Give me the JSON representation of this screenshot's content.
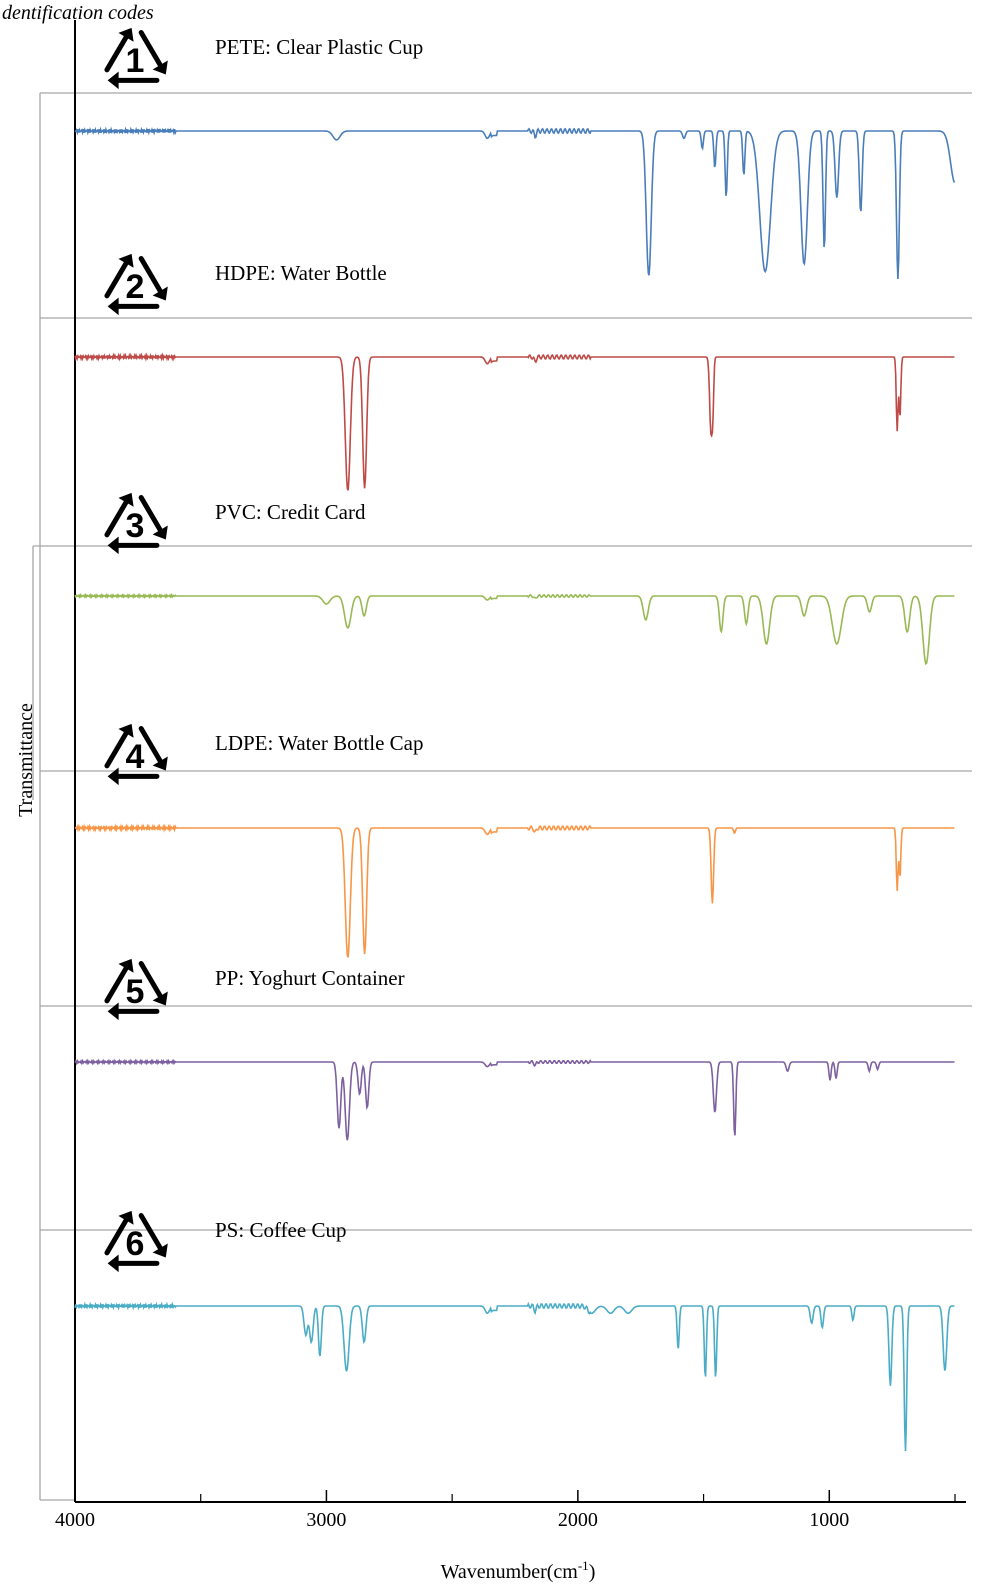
{
  "caption": "dentification codes",
  "chart_data": {
    "type": "line",
    "title": "",
    "xlabel": "Wavenumber (cm-1)",
    "xlabel_parts": {
      "main": "Wavenumber(cm",
      "sup": "-1",
      "close": ")"
    },
    "ylabel": "Transmittance",
    "xlim": [
      4000,
      500
    ],
    "x_reversed": true,
    "xticks": [
      4000,
      3000,
      2000,
      1000
    ],
    "xtick_labels": [
      "4000",
      "3000",
      "2000",
      "1000"
    ],
    "grid": false,
    "y_units": "relative transmittance (1 = baseline, 0 = full depth of strongest band, panels offset vertically)",
    "series": [
      {
        "code": "1",
        "label": "PETE:  Clear Plastic Cup",
        "color": "#4a7ebb",
        "baseline": 1.0,
        "peaks": [
          [
            2960,
            0.06,
            20
          ],
          [
            1718,
            0.98,
            14
          ],
          [
            1578,
            0.05,
            8
          ],
          [
            1505,
            0.12,
            6
          ],
          [
            1455,
            0.25,
            6
          ],
          [
            1410,
            0.45,
            6
          ],
          [
            1340,
            0.3,
            6
          ],
          [
            1255,
            0.95,
            30
          ],
          [
            1100,
            0.9,
            18
          ],
          [
            1020,
            0.8,
            7
          ],
          [
            970,
            0.45,
            10
          ],
          [
            875,
            0.55,
            8
          ],
          [
            727,
            1.0,
            8
          ],
          [
            500,
            0.35,
            25
          ]
        ]
      },
      {
        "code": "2",
        "label": "HDPE:  Water Bottle",
        "color": "#be4b48",
        "baseline": 1.0,
        "peaks": [
          [
            2915,
            1.0,
            14
          ],
          [
            2848,
            0.98,
            11
          ],
          [
            1471,
            0.55,
            7
          ],
          [
            1463,
            0.35,
            5
          ],
          [
            730,
            0.55,
            5
          ],
          [
            719,
            0.45,
            5
          ]
        ]
      },
      {
        "code": "3",
        "label": "PVC:  Credit Card",
        "color": "#98b954",
        "baseline": 1.0,
        "peaks": [
          [
            3000,
            0.1,
            20
          ],
          [
            2915,
            0.4,
            18
          ],
          [
            2850,
            0.25,
            12
          ],
          [
            1730,
            0.3,
            14
          ],
          [
            1430,
            0.45,
            10
          ],
          [
            1330,
            0.35,
            10
          ],
          [
            1250,
            0.6,
            18
          ],
          [
            1100,
            0.25,
            14
          ],
          [
            970,
            0.6,
            25
          ],
          [
            840,
            0.2,
            12
          ],
          [
            690,
            0.45,
            14
          ],
          [
            615,
            0.85,
            18
          ]
        ]
      },
      {
        "code": "4",
        "label": "LDPE:  Water Bottle Cap",
        "color": "#f79646",
        "baseline": 1.0,
        "peaks": [
          [
            2915,
            1.0,
            14
          ],
          [
            2848,
            0.97,
            11
          ],
          [
            1465,
            0.58,
            7
          ],
          [
            1377,
            0.04,
            5
          ],
          [
            730,
            0.48,
            5
          ],
          [
            719,
            0.38,
            5
          ]
        ]
      },
      {
        "code": "5",
        "label": "PP:  Yoghurt Container",
        "color": "#7d60a0",
        "baseline": 1.0,
        "peaks": [
          [
            2950,
            0.72,
            10
          ],
          [
            2917,
            0.85,
            12
          ],
          [
            2868,
            0.35,
            9
          ],
          [
            2838,
            0.5,
            9
          ],
          [
            1455,
            0.55,
            9
          ],
          [
            1376,
            0.82,
            6
          ],
          [
            1166,
            0.1,
            8
          ],
          [
            997,
            0.2,
            6
          ],
          [
            973,
            0.18,
            6
          ],
          [
            841,
            0.1,
            6
          ],
          [
            808,
            0.08,
            6
          ]
        ]
      },
      {
        "code": "6",
        "label": "PS:  Coffee Cup",
        "color": "#4bacc6",
        "baseline": 1.0,
        "peaks": [
          [
            3082,
            0.2,
            10
          ],
          [
            3060,
            0.25,
            10
          ],
          [
            3026,
            0.35,
            8
          ],
          [
            2920,
            0.45,
            14
          ],
          [
            2850,
            0.25,
            10
          ],
          [
            1945,
            0.05,
            20
          ],
          [
            1870,
            0.05,
            20
          ],
          [
            1800,
            0.05,
            20
          ],
          [
            1601,
            0.3,
            6
          ],
          [
            1493,
            0.5,
            6
          ],
          [
            1452,
            0.5,
            6
          ],
          [
            1070,
            0.12,
            8
          ],
          [
            1028,
            0.15,
            7
          ],
          [
            906,
            0.1,
            6
          ],
          [
            757,
            0.55,
            8
          ],
          [
            697,
            1.0,
            7
          ],
          [
            540,
            0.45,
            10
          ]
        ]
      }
    ]
  }
}
